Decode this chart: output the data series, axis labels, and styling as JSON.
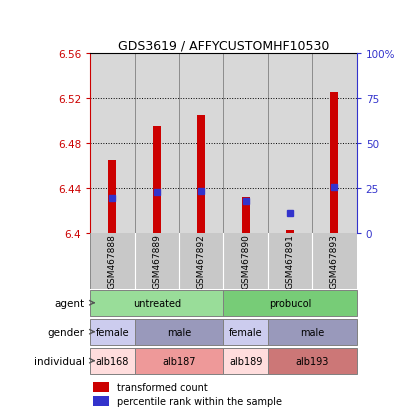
{
  "title": "GDS3619 / AFFYCUSTOMHF10530",
  "samples": [
    "GSM467888",
    "GSM467889",
    "GSM467892",
    "GSM467890",
    "GSM467891",
    "GSM467893"
  ],
  "red_bar_bottom": [
    6.4,
    6.4,
    6.4,
    6.4,
    6.4,
    6.4
  ],
  "red_bar_top": [
    6.465,
    6.495,
    6.505,
    6.432,
    6.403,
    6.525
  ],
  "blue_marker_val": [
    6.431,
    6.436,
    6.437,
    6.428,
    6.418,
    6.441
  ],
  "ylim": [
    6.4,
    6.56
  ],
  "yticks_left": [
    6.4,
    6.44,
    6.48,
    6.52,
    6.56
  ],
  "yticks_right": [
    0,
    25,
    50,
    75,
    100
  ],
  "ytick_labels_left": [
    "6.4",
    "6.44",
    "6.48",
    "6.52",
    "6.56"
  ],
  "ytick_labels_right": [
    "0",
    "25",
    "50",
    "75",
    "100%"
  ],
  "grid_lines": [
    6.44,
    6.48,
    6.52
  ],
  "bar_color": "#cc0000",
  "blue_color": "#3333cc",
  "sample_bg": "#c8c8c8",
  "agent_row": {
    "groups": [
      {
        "label": "untreated",
        "cols": [
          0,
          1,
          2
        ],
        "color": "#99dd99"
      },
      {
        "label": "probucol",
        "cols": [
          3,
          4,
          5
        ],
        "color": "#77cc77"
      }
    ]
  },
  "gender_row": {
    "groups": [
      {
        "label": "female",
        "cols": [
          0
        ],
        "color": "#ccccee"
      },
      {
        "label": "male",
        "cols": [
          1,
          2
        ],
        "color": "#9999bb"
      },
      {
        "label": "female",
        "cols": [
          3
        ],
        "color": "#ccccee"
      },
      {
        "label": "male",
        "cols": [
          4,
          5
        ],
        "color": "#9999bb"
      }
    ]
  },
  "individual_row": {
    "groups": [
      {
        "label": "alb168",
        "cols": [
          0
        ],
        "color": "#ffdddd"
      },
      {
        "label": "alb187",
        "cols": [
          1,
          2
        ],
        "color": "#ee9999"
      },
      {
        "label": "alb189",
        "cols": [
          3
        ],
        "color": "#ffdddd"
      },
      {
        "label": "alb193",
        "cols": [
          4,
          5
        ],
        "color": "#cc7777"
      }
    ]
  },
  "row_labels": [
    "agent",
    "gender",
    "individual"
  ],
  "legend_items": [
    {
      "color": "#cc0000",
      "label": "transformed count"
    },
    {
      "color": "#3333cc",
      "label": "percentile rank within the sample"
    }
  ]
}
